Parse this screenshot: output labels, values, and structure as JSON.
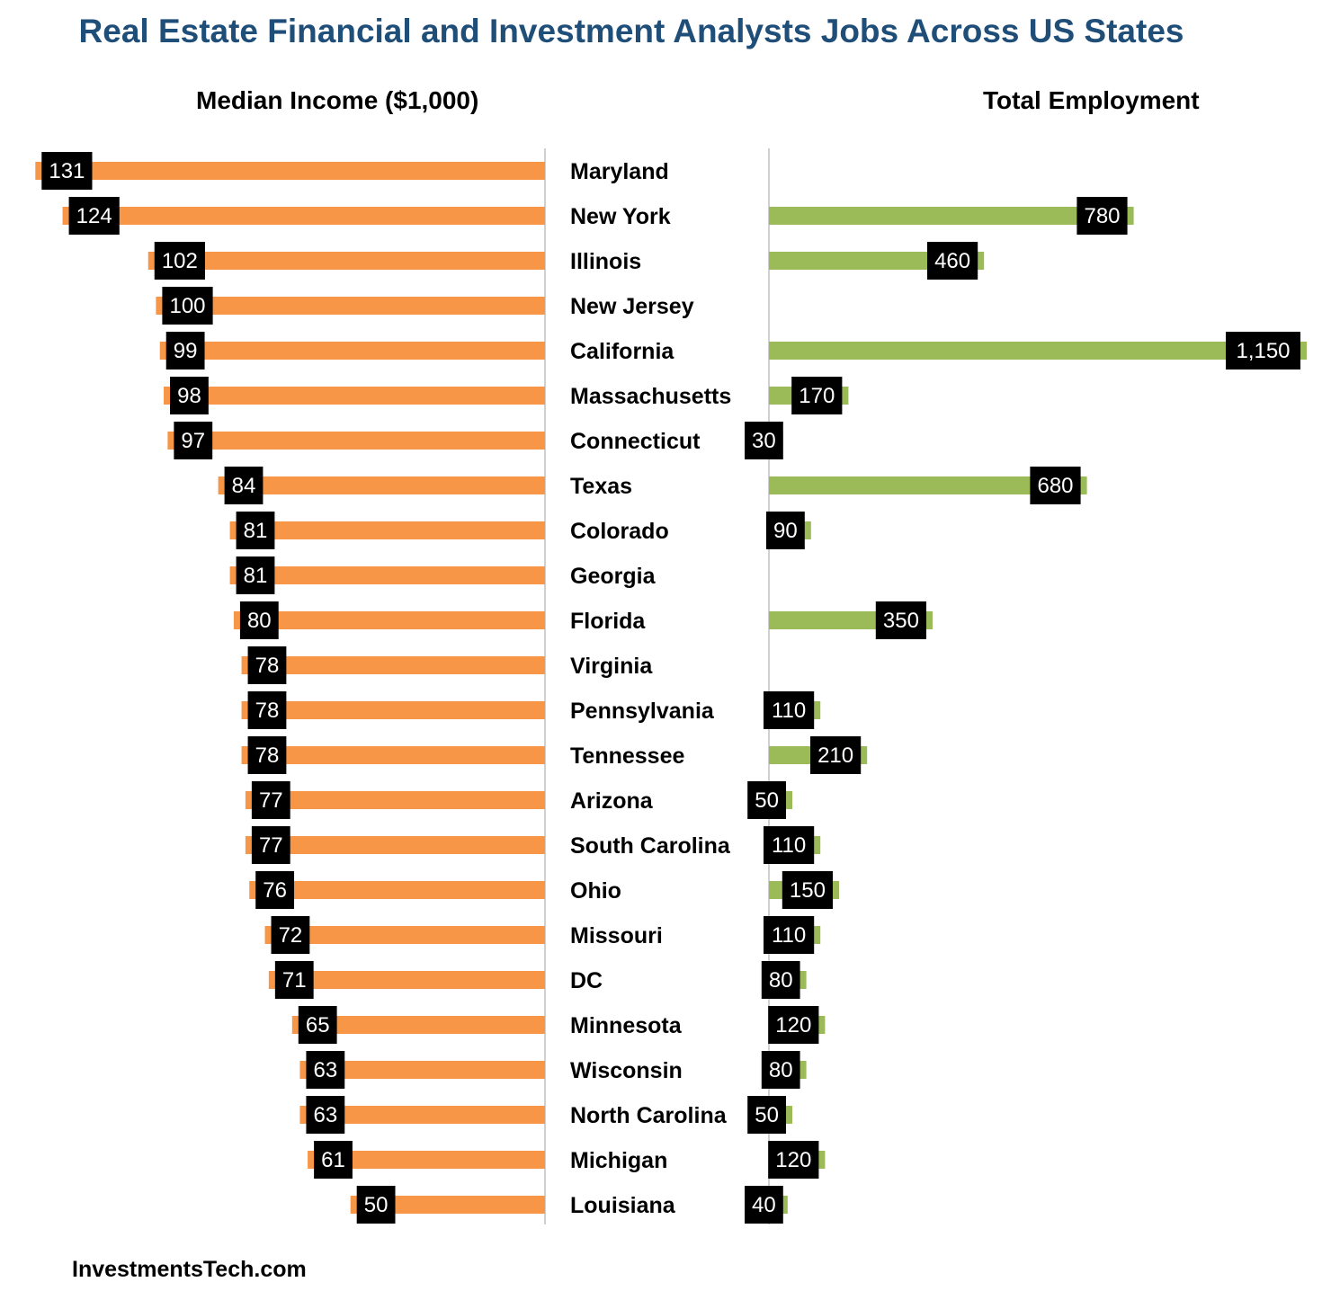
{
  "title": "Real Estate Financial and Investment Analysts Jobs Across US States",
  "source": "InvestmentsTech.com",
  "colors": {
    "title": "#1f4e79",
    "income_bar": "#f79646",
    "employment_bar": "#9bbb59",
    "label_box": "#000000",
    "label_text": "#ffffff",
    "axis_line": "#d0d0d0"
  },
  "chart_data": [
    {
      "type": "bar",
      "orientation": "horizontal",
      "direction": "right-to-left",
      "title": "Median Income ($1,000)",
      "categories": [
        "Maryland",
        "New York",
        "Illinois",
        "New Jersey",
        "California",
        "Massachusetts",
        "Connecticut",
        "Texas",
        "Colorado",
        "Georgia",
        "Florida",
        "Virginia",
        "Pennsylvania",
        "Tennessee",
        "Arizona",
        "South Carolina",
        "Ohio",
        "Missouri",
        "DC",
        "Minnesota",
        "Wisconsin",
        "North Carolina",
        "Michigan",
        "Louisiana"
      ],
      "values": [
        131,
        124,
        102,
        100,
        99,
        98,
        97,
        84,
        81,
        81,
        80,
        78,
        78,
        78,
        77,
        77,
        76,
        72,
        71,
        65,
        63,
        63,
        61,
        50
      ],
      "data_labels": [
        "131",
        "124",
        "102",
        "100",
        "99",
        "98",
        "97",
        "84",
        "81",
        "81",
        "80",
        "78",
        "78",
        "78",
        "77",
        "77",
        "76",
        "72",
        "71",
        "65",
        "63",
        "63",
        "61",
        "50"
      ],
      "grid": false,
      "legend": "none"
    },
    {
      "type": "bar",
      "orientation": "horizontal",
      "direction": "left-to-right",
      "title": "Total Employment",
      "categories": [
        "Maryland",
        "New York",
        "Illinois",
        "New Jersey",
        "California",
        "Massachusetts",
        "Connecticut",
        "Texas",
        "Colorado",
        "Georgia",
        "Florida",
        "Virginia",
        "Pennsylvania",
        "Tennessee",
        "Arizona",
        "South Carolina",
        "Ohio",
        "Missouri",
        "DC",
        "Minnesota",
        "Wisconsin",
        "North Carolina",
        "Michigan",
        "Louisiana"
      ],
      "values": [
        null,
        780,
        460,
        null,
        1150,
        170,
        30,
        680,
        90,
        null,
        350,
        null,
        110,
        210,
        50,
        110,
        150,
        110,
        80,
        120,
        80,
        50,
        120,
        40
      ],
      "data_labels": [
        "",
        "780",
        "460",
        "",
        "1,150",
        "170",
        "30",
        "680",
        "90",
        "",
        "350",
        "",
        "110",
        "210",
        "50",
        "110",
        "150",
        "110",
        "80",
        "120",
        "80",
        "50",
        "120",
        "40"
      ],
      "grid": false,
      "legend": "none"
    }
  ]
}
